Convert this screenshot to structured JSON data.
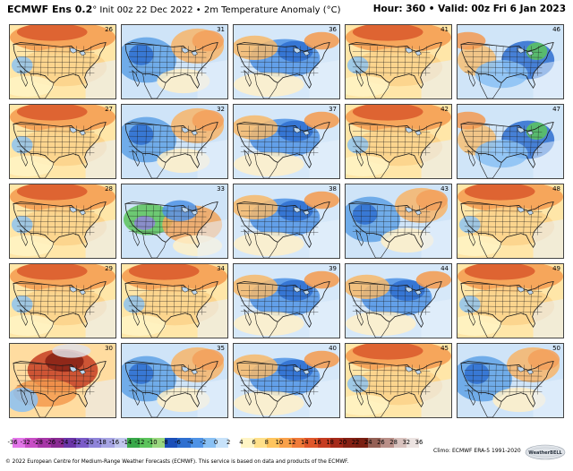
{
  "header": {
    "product": "ECMWF Ens 0.2",
    "init_info": "° Init 00z 22 Dec 2022 • 2m Temperature Anomaly (°C)",
    "valid_info": "Hour: 360 • Valid: 00z Fri 6 Jan 2023"
  },
  "members": [
    {
      "label": "26",
      "pattern": "warm-north"
    },
    {
      "label": "31",
      "pattern": "cold-west"
    },
    {
      "label": "36",
      "pattern": "cold-central"
    },
    {
      "label": "41",
      "pattern": "warm-north"
    },
    {
      "label": "46",
      "pattern": "cold-east"
    },
    {
      "label": "27",
      "pattern": "warm-north"
    },
    {
      "label": "32",
      "pattern": "cold-west"
    },
    {
      "label": "37",
      "pattern": "cold-central"
    },
    {
      "label": "42",
      "pattern": "warm-north"
    },
    {
      "label": "47",
      "pattern": "cold-east"
    },
    {
      "label": "28",
      "pattern": "warm-north"
    },
    {
      "label": "33",
      "pattern": "cold-west-deep"
    },
    {
      "label": "38",
      "pattern": "cold-central"
    },
    {
      "label": "43",
      "pattern": "cold-west"
    },
    {
      "label": "48",
      "pattern": "warm-north"
    },
    {
      "label": "29",
      "pattern": "warm-north"
    },
    {
      "label": "34",
      "pattern": "warm-north"
    },
    {
      "label": "39",
      "pattern": "cold-central"
    },
    {
      "label": "44",
      "pattern": "cold-central"
    },
    {
      "label": "49",
      "pattern": "warm-north"
    },
    {
      "label": "30",
      "pattern": "warm-deep"
    },
    {
      "label": "35",
      "pattern": "cold-west"
    },
    {
      "label": "40",
      "pattern": "cold-central"
    },
    {
      "label": "45",
      "pattern": "warm-north"
    },
    {
      "label": "50",
      "pattern": "cold-west"
    }
  ],
  "colorbar": {
    "ticks": [
      "-36",
      "-32",
      "-28",
      "-26",
      "-24",
      "-22",
      "-20",
      "-18",
      "-16",
      "-14",
      "-12",
      "-10",
      "-8",
      "-6",
      "-4",
      "-2",
      "0",
      "2",
      "4",
      "6",
      "8",
      "10",
      "12",
      "14",
      "16",
      "18",
      "20",
      "22",
      "24",
      "26",
      "28",
      "32",
      "36"
    ],
    "colors": [
      "#e377e9",
      "#c84ec6",
      "#a737a8",
      "#8a2b93",
      "#6b35a8",
      "#7b5bc8",
      "#8f84d9",
      "#a6a4e3",
      "#c2c7ee",
      "#39a84a",
      "#5cc45c",
      "#9ad77f",
      "#1b4fb8",
      "#2e6fd0",
      "#4f93e6",
      "#8ac1f4",
      "#c7e2fa",
      "#ffffff",
      "#fff4c4",
      "#ffe08a",
      "#ffc55e",
      "#f9a14a",
      "#f07b3a",
      "#e0572b",
      "#c63d22",
      "#a52a1a",
      "#852114",
      "#7a1f12",
      "#946055",
      "#b98f88",
      "#d8c2be",
      "#ece3e1"
    ],
    "climo_text": "Climo: ECMWF ERA-5 1991-2020"
  },
  "footer": {
    "copyright": "© 2022 European Centre for Medium-Range Weather Forecasts (ECMWF). This service is based on data and products of the ECMWF."
  },
  "logo_text": "WeatherBELL"
}
